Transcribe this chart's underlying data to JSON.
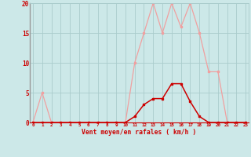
{
  "x_all": [
    0,
    1,
    2,
    3,
    4,
    5,
    6,
    7,
    8,
    9,
    10,
    11,
    12,
    13,
    14,
    15,
    16,
    17,
    18,
    19,
    20,
    21,
    22,
    23
  ],
  "rafales": [
    0,
    5,
    0,
    0,
    0,
    0,
    0,
    0,
    0,
    0,
    0,
    10,
    15,
    20,
    15,
    20,
    16,
    20,
    15,
    8.5,
    8.5,
    0,
    0,
    0
  ],
  "moyen": [
    0,
    0,
    0,
    0,
    0,
    0,
    0,
    0,
    0,
    0,
    0,
    1,
    3,
    4,
    4,
    6.5,
    6.5,
    3.5,
    1,
    0,
    0,
    0,
    0,
    0
  ],
  "line_color_light": "#f0a0a0",
  "line_color_dark": "#cc0000",
  "bg_color": "#cce8e8",
  "grid_color": "#aacccc",
  "axis_color": "#cc0000",
  "ylabel_ticks": [
    0,
    5,
    10,
    15,
    20
  ],
  "xlabel": "Vent moyen/en rafales ( km/h )",
  "xlim": [
    0,
    23
  ],
  "ylim": [
    0,
    20
  ],
  "marker_light": "s",
  "marker_dark": "s",
  "lw_light": 0.9,
  "lw_dark": 1.1,
  "ms": 2.0
}
